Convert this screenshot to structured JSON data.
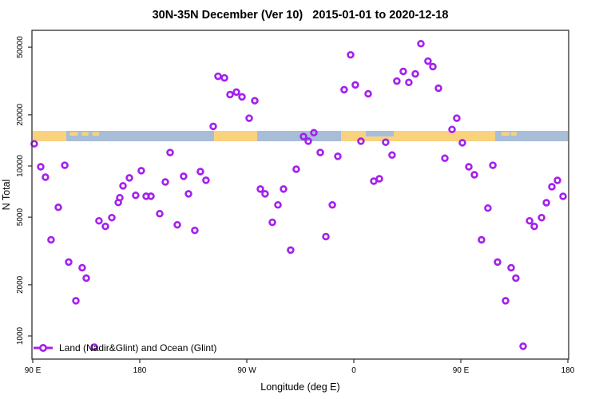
{
  "title": "30N-35N December (Ver 10)   2015-01-01 to 2020-12-18",
  "legend": {
    "label": "Land (Nadir&Glint) and Ocean (Glint)",
    "marker": "open-circle-on-line",
    "marker_color": "#A520EE"
  },
  "chart_data": {
    "type": "scatter",
    "title": "30N-35N December (Ver 10)   2015-01-01 to 2020-12-18",
    "xlabel": "Longitude (deg E)",
    "ylabel": "N Total",
    "legend_position": "bottom-left inside plot",
    "grid": false,
    "x_axis": {
      "note": "longitude axis starts at 90E and wraps eastward around the globe 1.25 times",
      "range_deg": [
        90,
        540
      ],
      "ticks_deg": [
        90,
        180,
        270,
        360,
        450,
        540
      ],
      "tick_labels": [
        "90 E",
        "180",
        "90 W",
        "0",
        "90 E",
        "180"
      ]
    },
    "y_axis": {
      "scale": "log10",
      "range": [
        800,
        60000
      ],
      "ticks": [
        1000,
        2000,
        5000,
        10000,
        20000,
        50000
      ],
      "tick_labels": [
        "1000",
        "2000",
        "5000",
        "10000",
        "20000",
        "50000"
      ]
    },
    "series": [
      {
        "name": "Land (Nadir&Glint) and Ocean (Glint)",
        "marker": "open-circle",
        "color": "#A520EE",
        "points_lon_N": [
          [
            91.3,
            13500
          ],
          [
            96.7,
            9890
          ],
          [
            100.7,
            8600
          ],
          [
            116.9,
            10100
          ],
          [
            111.5,
            5710
          ],
          [
            105.4,
            3680
          ],
          [
            120.2,
            2720
          ],
          [
            126.3,
            1610
          ],
          [
            131.6,
            2520
          ],
          [
            135.0,
            2190
          ],
          [
            141.7,
            860
          ],
          [
            145.7,
            4760
          ],
          [
            151.1,
            4410
          ],
          [
            156.5,
            4970
          ],
          [
            161.9,
            6100
          ],
          [
            163.2,
            6500
          ],
          [
            165.9,
            7640
          ],
          [
            171.3,
            8510
          ],
          [
            176.6,
            6720
          ],
          [
            181.3,
            9380
          ],
          [
            185.4,
            6640
          ],
          [
            189.4,
            6640
          ],
          [
            196.8,
            5240
          ],
          [
            201.5,
            8060
          ],
          [
            205.5,
            12000
          ],
          [
            211.6,
            4510
          ],
          [
            216.9,
            8700
          ],
          [
            221.0,
            6860
          ],
          [
            226.3,
            4180
          ],
          [
            231.0,
            9270
          ],
          [
            235.7,
            8240
          ],
          [
            241.8,
            17100
          ],
          [
            245.8,
            33700
          ],
          [
            251.2,
            33000
          ],
          [
            255.9,
            26300
          ],
          [
            261.3,
            27200
          ],
          [
            266.0,
            25500
          ],
          [
            272.0,
            19100
          ],
          [
            276.7,
            24200
          ],
          [
            281.4,
            7320
          ],
          [
            285.4,
            6860
          ],
          [
            291.5,
            4660
          ],
          [
            296.2,
            5900
          ],
          [
            300.9,
            7320
          ],
          [
            306.9,
            3200
          ],
          [
            311.6,
            9580
          ],
          [
            317.7,
            14900
          ],
          [
            321.7,
            14000
          ],
          [
            326.4,
            15700
          ],
          [
            331.8,
            12000
          ],
          [
            336.5,
            3840
          ],
          [
            341.9,
            5900
          ],
          [
            346.6,
            11400
          ],
          [
            351.9,
            28100
          ],
          [
            357.3,
            45100
          ],
          [
            361.3,
            30000
          ],
          [
            366.0,
            14000
          ],
          [
            372.1,
            26600
          ],
          [
            376.8,
            8140
          ],
          [
            381.5,
            8410
          ],
          [
            386.8,
            13800
          ],
          [
            392.2,
            11600
          ],
          [
            396.2,
            31600
          ],
          [
            401.6,
            36000
          ],
          [
            406.3,
            31000
          ],
          [
            411.7,
            34800
          ],
          [
            416.4,
            52400
          ],
          [
            422.4,
            41400
          ],
          [
            426.5,
            38400
          ],
          [
            431.2,
            28700
          ],
          [
            436.6,
            11100
          ],
          [
            442.6,
            16400
          ],
          [
            446.6,
            19100
          ],
          [
            451.3,
            13700
          ],
          [
            456.7,
            9890
          ],
          [
            461.4,
            8880
          ],
          [
            467.4,
            3680
          ],
          [
            472.8,
            5650
          ],
          [
            476.9,
            10100
          ],
          [
            480.9,
            2720
          ],
          [
            487.6,
            1610
          ],
          [
            492.3,
            2520
          ],
          [
            496.3,
            2190
          ],
          [
            502.4,
            870
          ],
          [
            507.8,
            4760
          ],
          [
            511.8,
            4410
          ],
          [
            517.9,
            4970
          ],
          [
            521.9,
            6080
          ],
          [
            526.6,
            7550
          ],
          [
            531.3,
            8230
          ],
          [
            536.0,
            6630
          ]
        ]
      }
    ],
    "map_strip": {
      "meaning": "horizontal band showing land vs ocean across the 30N-35N latitude belt",
      "N_range": [
        14000,
        16100
      ],
      "land_color": "#F9D27E",
      "ocean_color": "#A7BDD8",
      "segments_deg": [
        {
          "from": 90.0,
          "to": 118.2,
          "surface": "land"
        },
        {
          "from": 118.2,
          "to": 242.5,
          "surface": "ocean"
        },
        {
          "from": 242.5,
          "to": 278.7,
          "surface": "land"
        },
        {
          "from": 278.7,
          "to": 349.3,
          "surface": "ocean"
        },
        {
          "from": 349.3,
          "to": 370.1,
          "surface": "land"
        },
        {
          "from": 370.1,
          "to": 393.6,
          "surface": "mixed-ocean-north-land-south"
        },
        {
          "from": 393.6,
          "to": 478.9,
          "surface": "land"
        },
        {
          "from": 478.9,
          "to": 540.0,
          "surface": "ocean"
        }
      ],
      "island_specks_deg": [
        [
          121,
          128
        ],
        [
          131,
          137
        ],
        [
          140,
          146
        ],
        [
          484,
          491
        ],
        [
          492,
          497
        ]
      ]
    }
  }
}
